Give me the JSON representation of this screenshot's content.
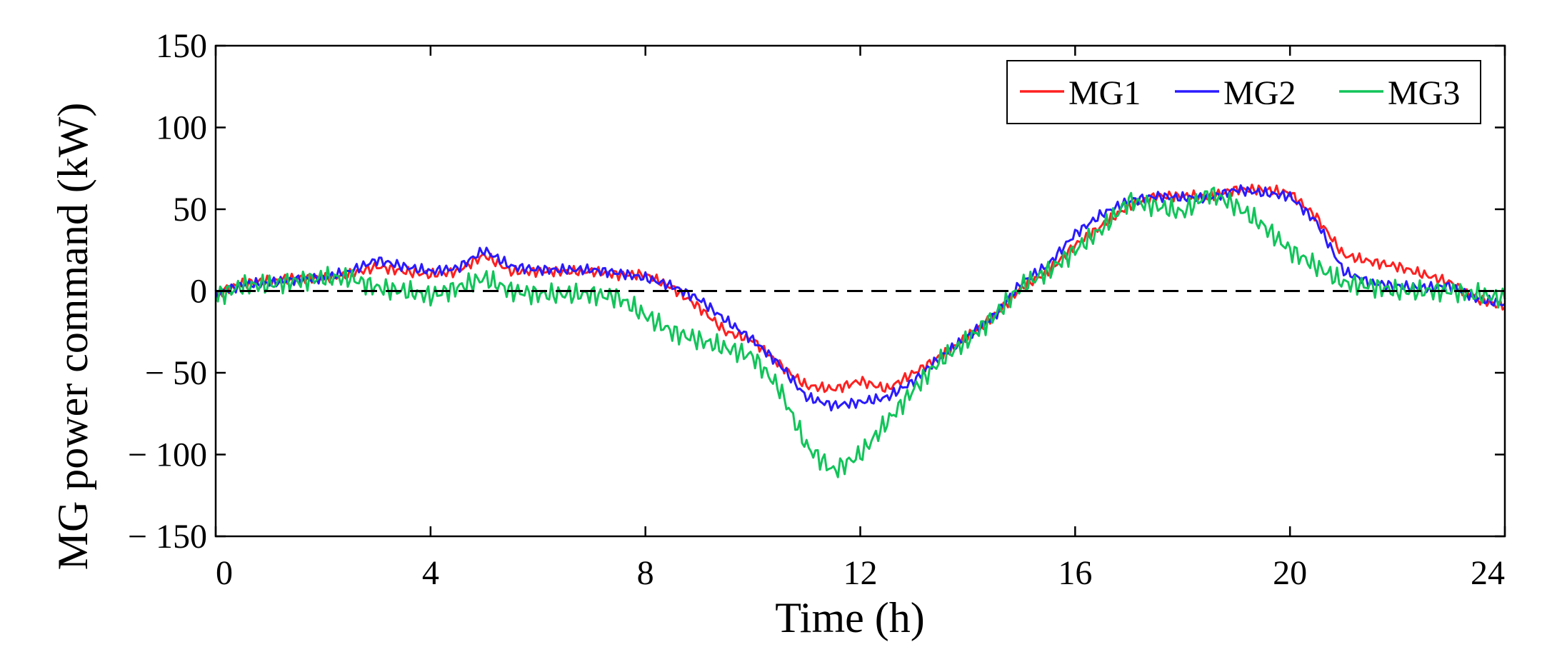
{
  "chart_data": {
    "type": "line",
    "title": "",
    "xlabel": "Time (h)",
    "ylabel": "MG power command (kW)",
    "xlim": [
      0,
      24
    ],
    "ylim": [
      -150,
      150
    ],
    "x_ticks": [
      0,
      4,
      8,
      12,
      16,
      20,
      24
    ],
    "x_tick_labels": [
      "0",
      "4",
      "8",
      "12",
      "16",
      "20",
      "24"
    ],
    "y_ticks": [
      150,
      100,
      50,
      0,
      -50,
      -100,
      -150
    ],
    "y_tick_labels": [
      "150",
      "100",
      "50",
      "0",
      "− 50",
      "− 100",
      "− 150"
    ],
    "grid": false,
    "legend_position": "top-right",
    "reference_line": {
      "y": 0,
      "style": "dashed",
      "color": "#000000"
    },
    "x": [
      0,
      0.5,
      1,
      1.5,
      2,
      2.5,
      3,
      3.5,
      4,
      4.5,
      5,
      5.5,
      6,
      6.5,
      7,
      7.5,
      8,
      8.5,
      9,
      9.5,
      10,
      10.5,
      11,
      11.5,
      12,
      12.5,
      13,
      13.5,
      14,
      14.5,
      15,
      15.5,
      16,
      16.5,
      17,
      17.5,
      18,
      18.5,
      19,
      19.5,
      20,
      20.5,
      21,
      21.5,
      22,
      22.5,
      23,
      23.5,
      24
    ],
    "series": [
      {
        "name": "MG1",
        "color": "#ff2020",
        "values": [
          -2,
          5,
          6,
          8,
          8,
          10,
          15,
          12,
          10,
          12,
          22,
          12,
          12,
          12,
          12,
          10,
          10,
          2,
          -10,
          -25,
          -30,
          -45,
          -58,
          -60,
          -55,
          -60,
          -50,
          -40,
          -28,
          -15,
          2,
          12,
          28,
          40,
          52,
          58,
          58,
          58,
          62,
          62,
          60,
          45,
          22,
          18,
          15,
          10,
          5,
          -5,
          -10
        ]
      },
      {
        "name": "MG2",
        "color": "#2a1aff",
        "values": [
          -2,
          4,
          5,
          7,
          8,
          12,
          19,
          15,
          12,
          14,
          25,
          15,
          13,
          13,
          13,
          11,
          8,
          3,
          -5,
          -18,
          -30,
          -45,
          -65,
          -70,
          -68,
          -65,
          -55,
          -40,
          -28,
          -15,
          5,
          16,
          35,
          47,
          55,
          58,
          57,
          57,
          62,
          60,
          58,
          42,
          12,
          5,
          3,
          2,
          3,
          -5,
          -8
        ]
      },
      {
        "name": "MG3",
        "color": "#12c45a",
        "values": [
          -3,
          3,
          4,
          6,
          8,
          8,
          2,
          0,
          -3,
          2,
          8,
          0,
          -2,
          -2,
          -2,
          -4,
          -15,
          -25,
          -30,
          -35,
          -40,
          -60,
          -95,
          -110,
          -100,
          -80,
          -60,
          -42,
          -30,
          -15,
          3,
          12,
          25,
          38,
          55,
          52,
          48,
          60,
          52,
          40,
          25,
          15,
          5,
          3,
          0,
          0,
          0,
          -2,
          -5
        ]
      }
    ]
  }
}
